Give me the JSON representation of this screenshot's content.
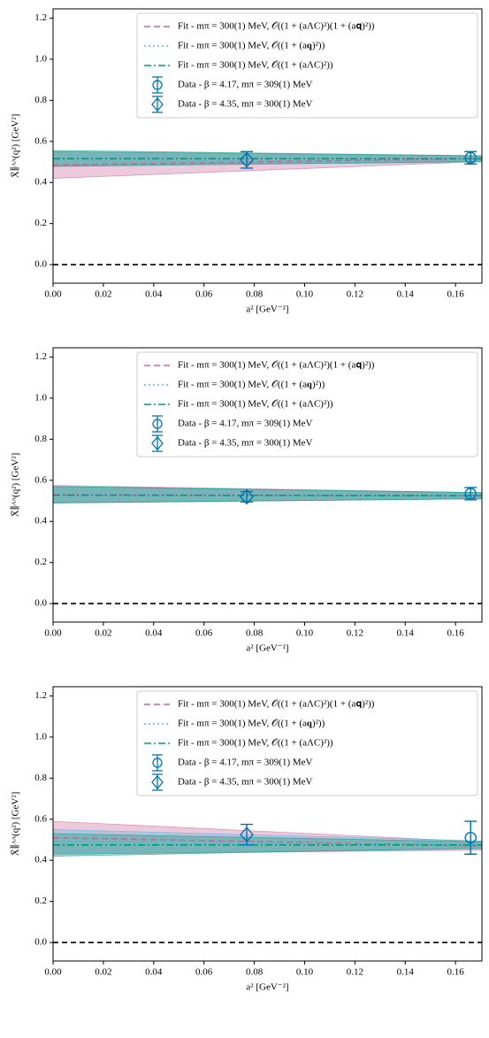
{
  "chart_data": [
    {
      "type": "line",
      "xlabel": "a² [GeV⁻²]",
      "ylabel": "X̄∥ᴬᴬ(q²) [GeV²]",
      "xlim": [
        0,
        0.1705
      ],
      "ylim": [
        -0.09,
        1.245
      ],
      "xticks": [
        {
          "value": 0,
          "label": "0.00"
        },
        0.02,
        0.04,
        0.06,
        0.08,
        {
          "value": 0.1,
          "label": "0.10"
        },
        0.12,
        0.14,
        0.16
      ],
      "yticks": [
        {
          "value": 0,
          "label": "0.0"
        },
        0.2,
        0.4,
        0.6,
        0.8,
        {
          "value": 1,
          "label": "1.0"
        },
        1.2
      ],
      "hline": 0,
      "series": [
        {
          "name": "Fit - mπ = 300(1) MeV, 𝒪((1 + (aΛC)²)(1 + (a𝐪)²))",
          "color": "#cc6699",
          "x": [
            0,
            0.1705
          ],
          "values": [
            0.485,
            0.516
          ],
          "band_lower": [
            0.42,
            0.502
          ],
          "band_upper": [
            0.55,
            0.53
          ]
        },
        {
          "name": "Fit - mπ = 300(1) MeV, 𝒪((1 + (a𝐪)²))",
          "color": "#56b4e9",
          "x": [
            0,
            0.1705
          ],
          "values": [
            0.515,
            0.515
          ],
          "band_lower": [
            0.48,
            0.5
          ],
          "band_upper": [
            0.55,
            0.53
          ]
        },
        {
          "name": "Fit - mπ = 300(1) MeV, 𝒪((1 + (aΛC)²))",
          "color": "#009e73",
          "x": [
            0,
            0.1705
          ],
          "values": [
            0.516,
            0.516
          ],
          "band_lower": [
            0.478,
            0.502
          ],
          "band_upper": [
            0.556,
            0.53
          ]
        }
      ],
      "points": [
        {
          "name": "Data - β = 4.17, mπ = 309(1) MeV",
          "color": "#0072b2",
          "marker": "circle",
          "x": [
            0.166
          ],
          "values": [
            0.52
          ],
          "errors": [
            0.03
          ]
        },
        {
          "name": "Data - β = 4.35, mπ = 300(1) MeV",
          "color": "#0072b2",
          "marker": "diamond",
          "x": [
            0.077
          ],
          "values": [
            0.51
          ],
          "errors": [
            0.04
          ]
        }
      ]
    },
    {
      "type": "line",
      "xlabel": "a² [GeV⁻²]",
      "ylabel": "X̄∥ᴬᴬ(q²) [GeV²]",
      "xlim": [
        0,
        0.1705
      ],
      "ylim": [
        -0.09,
        1.245
      ],
      "xticks": [
        {
          "value": 0,
          "label": "0.00"
        },
        0.02,
        0.04,
        0.06,
        0.08,
        {
          "value": 0.1,
          "label": "0.10"
        },
        0.12,
        0.14,
        0.16
      ],
      "yticks": [
        {
          "value": 0,
          "label": "0.0"
        },
        0.2,
        0.4,
        0.6,
        0.8,
        {
          "value": 1,
          "label": "1.0"
        },
        1.2
      ],
      "hline": 0,
      "series": [
        {
          "name": "Fit - mπ = 300(1) MeV, 𝒪((1 + (aΛC)²)(1 + (a𝐪)²))",
          "color": "#cc6699",
          "x": [
            0,
            0.1705
          ],
          "values": [
            0.53,
            0.525
          ],
          "band_lower": [
            0.49,
            0.51
          ],
          "band_upper": [
            0.575,
            0.54
          ]
        },
        {
          "name": "Fit - mπ = 300(1) MeV, 𝒪((1 + (a𝐪)²))",
          "color": "#56b4e9",
          "x": [
            0,
            0.1705
          ],
          "values": [
            0.53,
            0.525
          ],
          "band_lower": [
            0.49,
            0.51
          ],
          "band_upper": [
            0.57,
            0.54
          ]
        },
        {
          "name": "Fit - mπ = 300(1) MeV, 𝒪((1 + (aΛC)²))",
          "color": "#009e73",
          "x": [
            0,
            0.1705
          ],
          "values": [
            0.528,
            0.525
          ],
          "band_lower": [
            0.49,
            0.51
          ],
          "band_upper": [
            0.57,
            0.54
          ]
        }
      ],
      "points": [
        {
          "name": "Data - β = 4.17, mπ = 309(1) MeV",
          "color": "#0072b2",
          "marker": "circle",
          "x": [
            0.166
          ],
          "values": [
            0.535
          ],
          "errors": [
            0.03
          ]
        },
        {
          "name": "Data - β = 4.35, mπ = 300(1) MeV",
          "color": "#0072b2",
          "marker": "diamond",
          "x": [
            0.077
          ],
          "values": [
            0.52
          ],
          "errors": [
            0.025
          ]
        }
      ]
    },
    {
      "type": "line",
      "xlabel": "a² [GeV⁻²]",
      "ylabel": "X̄∥ᴬᴬ(q²) [GeV²]",
      "xlim": [
        0,
        0.1705
      ],
      "ylim": [
        -0.09,
        1.245
      ],
      "xticks": [
        {
          "value": 0,
          "label": "0.00"
        },
        0.02,
        0.04,
        0.06,
        0.08,
        {
          "value": 0.1,
          "label": "0.10"
        },
        0.12,
        0.14,
        0.16
      ],
      "yticks": [
        {
          "value": 0,
          "label": "0.0"
        },
        0.2,
        0.4,
        0.6,
        0.8,
        {
          "value": 1,
          "label": "1.0"
        },
        1.2
      ],
      "hline": 0,
      "series": [
        {
          "name": "Fit - mπ = 300(1) MeV, 𝒪((1 + (aΛC)²)(1 + (a𝐪)²))",
          "color": "#cc6699",
          "x": [
            0,
            0.1705
          ],
          "values": [
            0.51,
            0.47
          ],
          "band_lower": [
            0.43,
            0.45
          ],
          "band_upper": [
            0.59,
            0.49
          ]
        },
        {
          "name": "Fit - mπ = 300(1) MeV, 𝒪((1 + (a𝐪)²))",
          "color": "#56b4e9",
          "x": [
            0,
            0.1705
          ],
          "values": [
            0.49,
            0.475
          ],
          "band_lower": [
            0.43,
            0.455
          ],
          "band_upper": [
            0.55,
            0.495
          ]
        },
        {
          "name": "Fit - mπ = 300(1) MeV, 𝒪((1 + (aΛC)²))",
          "color": "#009e73",
          "x": [
            0,
            0.1705
          ],
          "values": [
            0.475,
            0.475
          ],
          "band_lower": [
            0.42,
            0.46
          ],
          "band_upper": [
            0.53,
            0.49
          ]
        }
      ],
      "points": [
        {
          "name": "Data - β = 4.17, mπ = 309(1) MeV",
          "color": "#0072b2",
          "marker": "circle",
          "x": [
            0.166
          ],
          "values": [
            0.51
          ],
          "errors": [
            0.08
          ]
        },
        {
          "name": "Data - β = 4.35, mπ = 300(1) MeV",
          "color": "#0072b2",
          "marker": "diamond",
          "x": [
            0.077
          ],
          "values": [
            0.525
          ],
          "errors": [
            0.05
          ]
        }
      ]
    }
  ]
}
